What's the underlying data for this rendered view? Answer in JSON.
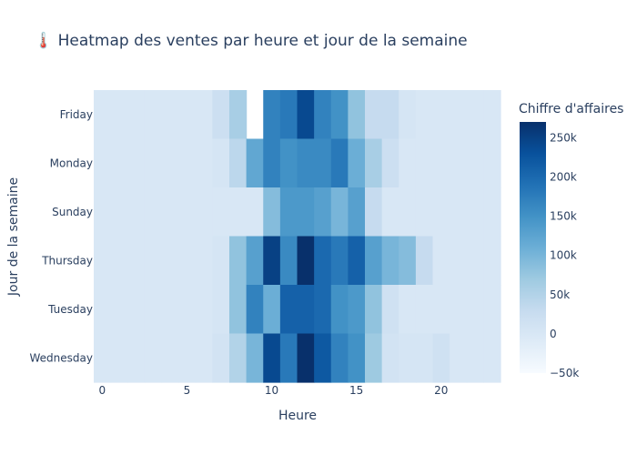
{
  "chart_data": {
    "type": "heatmap",
    "title": "🌡️ Heatmap des ventes par heure et jour de la semaine",
    "xlabel": "Heure",
    "ylabel": "Jour de la semaine",
    "x": [
      0,
      1,
      2,
      3,
      4,
      5,
      6,
      7,
      8,
      9,
      10,
      11,
      12,
      13,
      14,
      15,
      16,
      17,
      18,
      19,
      20,
      21,
      22,
      23
    ],
    "y": [
      "Friday",
      "Monday",
      "Sunday",
      "Thursday",
      "Tuesday",
      "Wednesday"
    ],
    "x_ticks": [
      0,
      5,
      10,
      15,
      20
    ],
    "colorbar": {
      "title": "Chiffre d'affaires",
      "range": [
        -50000,
        270000
      ],
      "ticks": [
        -50000,
        0,
        50000,
        100000,
        150000,
        200000,
        250000
      ],
      "tick_labels": [
        "−50k",
        "0",
        "50k",
        "100k",
        "150k",
        "200k",
        "250k"
      ]
    },
    "colorscale": "Blues",
    "z": [
      [
        0,
        0,
        0,
        0,
        0,
        0,
        0,
        20000,
        60000,
        null,
        170000,
        180000,
        240000,
        170000,
        150000,
        80000,
        30000,
        30000,
        5000,
        0,
        0,
        0,
        0,
        0
      ],
      [
        0,
        0,
        0,
        0,
        0,
        0,
        0,
        5000,
        40000,
        120000,
        170000,
        150000,
        160000,
        160000,
        180000,
        110000,
        60000,
        20000,
        0,
        0,
        0,
        0,
        0,
        0
      ],
      [
        0,
        0,
        0,
        0,
        0,
        0,
        0,
        0,
        0,
        0,
        90000,
        140000,
        140000,
        130000,
        100000,
        130000,
        30000,
        0,
        0,
        0,
        0,
        0,
        0,
        0
      ],
      [
        0,
        0,
        0,
        0,
        0,
        0,
        0,
        5000,
        80000,
        130000,
        250000,
        160000,
        270000,
        200000,
        180000,
        210000,
        130000,
        100000,
        90000,
        30000,
        0,
        0,
        0,
        0
      ],
      [
        0,
        0,
        0,
        0,
        0,
        0,
        0,
        5000,
        80000,
        170000,
        110000,
        210000,
        210000,
        200000,
        150000,
        140000,
        80000,
        15000,
        0,
        0,
        0,
        0,
        0,
        0
      ],
      [
        0,
        0,
        0,
        0,
        0,
        0,
        0,
        10000,
        50000,
        100000,
        240000,
        180000,
        270000,
        220000,
        170000,
        150000,
        70000,
        10000,
        5000,
        5000,
        15000,
        0,
        0,
        0
      ]
    ]
  }
}
